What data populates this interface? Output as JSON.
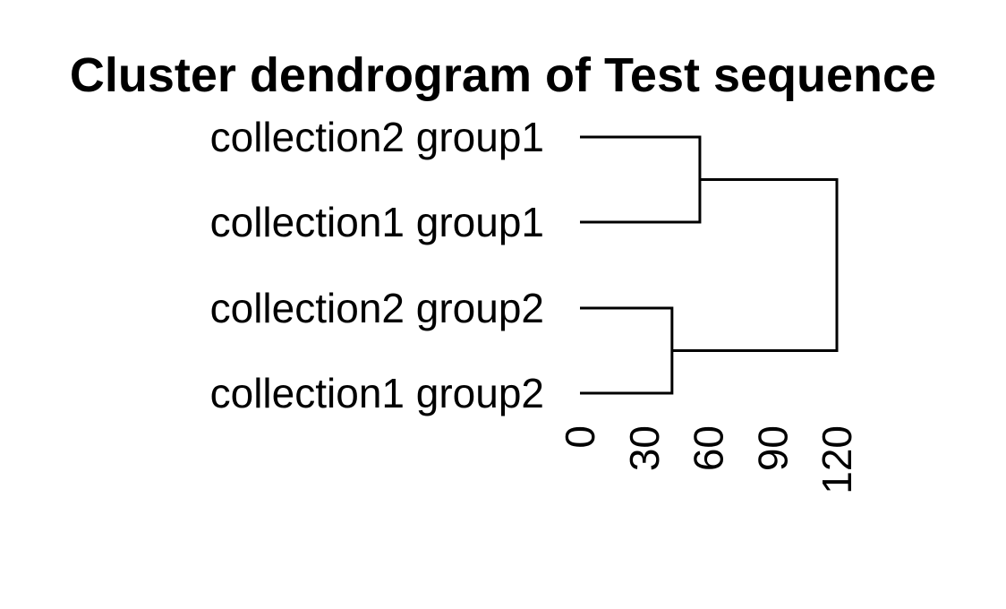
{
  "chart_data": {
    "type": "dendrogram",
    "title": "Cluster dendrogram of Test sequence",
    "orientation": "horizontal",
    "labels": [
      "collection2 group1",
      "collection1 group1",
      "collection2 group2",
      "collection1 group2"
    ],
    "merges": [
      {
        "members": [
          "collection2 group1",
          "collection1 group1"
        ],
        "height": 56
      },
      {
        "members": [
          "collection2 group2",
          "collection1 group2"
        ],
        "height": 43
      },
      {
        "members": [
          "cluster-1",
          "cluster-2"
        ],
        "height": 120
      }
    ],
    "x_axis": {
      "ticks": [
        0,
        30,
        60,
        90,
        120
      ],
      "tick_labels": [
        "0",
        "30",
        "60",
        "90",
        "120"
      ],
      "range": [
        0,
        120
      ]
    },
    "grid": false,
    "legend": "none"
  }
}
